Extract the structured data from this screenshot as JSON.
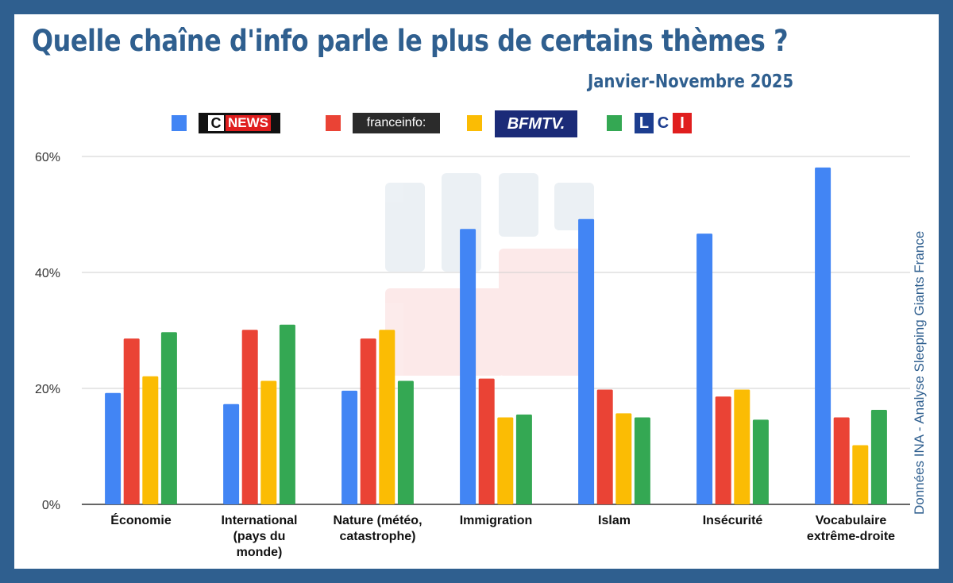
{
  "title": "Quelle chaîne d'info parle le plus de certains thèmes ?",
  "subtitle": "Janvier-Novembre 2025",
  "credit": "Données INA - Analyse Sleeping Giants France",
  "legend": {
    "cnews": {
      "c": "C",
      "n": "NEWS"
    },
    "franceinfo": "franceinfo:",
    "bfmtv": "BFMTV.",
    "lci": {
      "l": "L",
      "c": "C",
      "i": "I"
    }
  },
  "chart_data": {
    "type": "bar",
    "categories": [
      [
        "Économie"
      ],
      [
        "International",
        "(pays du",
        "monde)"
      ],
      [
        "Nature (météo,",
        "catastrophe)"
      ],
      [
        "Immigration"
      ],
      [
        "Islam"
      ],
      [
        "Insécurité"
      ],
      [
        "Vocabulaire",
        "extrême-droite"
      ]
    ],
    "series": [
      {
        "name": "CNEWS",
        "color": "#4285f4",
        "values": [
          19.2,
          17.3,
          19.6,
          47.5,
          49.2,
          46.7,
          58.1
        ]
      },
      {
        "name": "franceinfo",
        "color": "#ea4335",
        "values": [
          28.6,
          30.1,
          28.6,
          21.7,
          19.8,
          18.6,
          15.0
        ]
      },
      {
        "name": "BFMTV",
        "color": "#fbbc04",
        "values": [
          22.1,
          21.3,
          30.1,
          15.0,
          15.7,
          19.8,
          10.2
        ]
      },
      {
        "name": "LCI",
        "color": "#34a853",
        "values": [
          29.7,
          31.0,
          21.3,
          15.5,
          15.0,
          14.6,
          16.3
        ]
      }
    ],
    "ylim": [
      0,
      60
    ],
    "yticks": [
      "0%",
      "20%",
      "40%",
      "60%"
    ],
    "yticks_values": [
      0,
      20,
      40,
      60
    ],
    "grid": true,
    "legend_position": "top"
  }
}
